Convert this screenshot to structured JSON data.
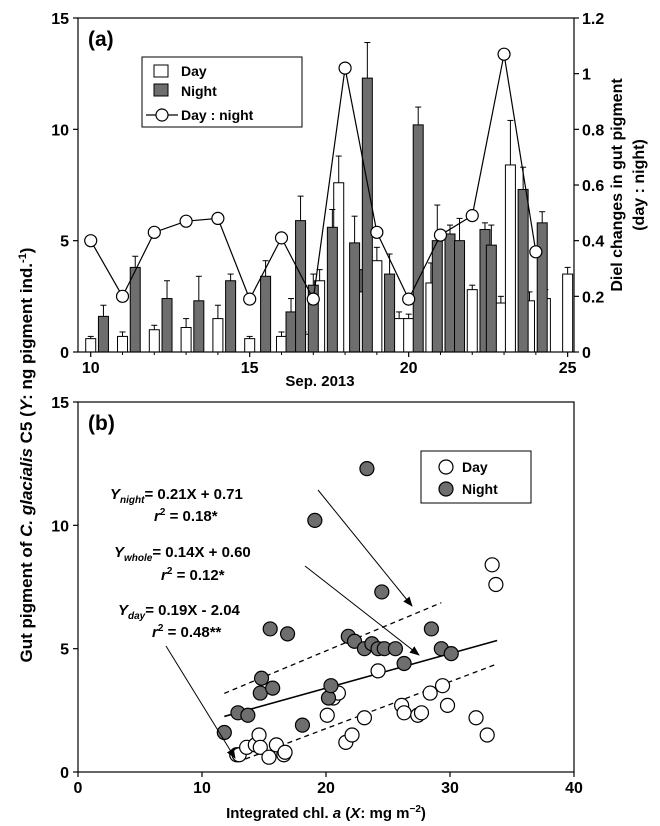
{
  "panel_a": {
    "label": "(a)",
    "left_axis_label_html": "",
    "right_axis_label_line1": "Diel changes in gut pigment",
    "right_axis_label_line2": "(day : night)",
    "x_title": "Sep. 2013",
    "legend": {
      "day": "Day",
      "night": "Night",
      "ratio": "Day : night"
    }
  },
  "panel_b": {
    "label": "(b)",
    "x_title_pre": "Integrated chl. ",
    "x_title_italic": "a",
    "x_title_mid": " (",
    "x_title_X": "X",
    "x_title_post": ": mg m",
    "x_title_sup": "−2",
    "x_title_end": ")",
    "legend": {
      "day": "Day",
      "night": "Night"
    },
    "eq_night": {
      "Y": "Y",
      "sub": "night",
      "rhs": "= 0.21X + 0.71",
      "r2_r": "r",
      "r2_sup": "2",
      "r2_val": " = 0.18*"
    },
    "eq_whole": {
      "Y": "Y",
      "sub": "whole",
      "rhs": "= 0.14X + 0.60",
      "r2_r": "r",
      "r2_sup": "2",
      "r2_val": " = 0.12*"
    },
    "eq_day": {
      "Y": "Y",
      "sub": "day",
      "rhs": "= 0.19X - 2.04",
      "r2_r": "r",
      "r2_sup": "2",
      "r2_val": " = 0.48**"
    }
  },
  "shared_ylabel": {
    "part1": "Gut pigment of ",
    "italic": "C. glacialis",
    "part2": " C5 (",
    "Y": "Y",
    "part3": ": ng pigment ind.",
    "sup": "-1",
    "part4": ")"
  },
  "colors": {
    "night_fill": "#6e6e6e",
    "day_fill": "#ffffff",
    "stroke": "#000000"
  },
  "chart_data": [
    {
      "type": "bar",
      "panel": "a",
      "xlim": [
        9.6,
        25.2
      ],
      "xticks": [
        10,
        15,
        20,
        25
      ],
      "ylim": [
        0,
        15
      ],
      "yticks": [
        0,
        5,
        10,
        15
      ],
      "ylim_right": [
        0,
        1.2
      ],
      "yticks_right": [
        "0",
        "0.2",
        "0.4",
        "0.6",
        "0.8",
        "1",
        "1.2"
      ],
      "series": [
        {
          "name": "Day",
          "x": [
            10.0,
            11.0,
            12.0,
            13.0,
            14.0,
            15.0,
            16.0,
            16.7,
            17.2,
            17.8,
            18.5,
            19.0,
            19.7,
            20.0,
            20.7,
            21.5,
            22.0,
            22.9,
            23.2,
            23.8,
            24.3,
            25.0
          ],
          "values": [
            0.6,
            0.7,
            1.0,
            1.1,
            1.5,
            0.6,
            0.7,
            0.8,
            3.2,
            7.6,
            2.7,
            4.1,
            1.5,
            1.5,
            3.1,
            2.3,
            2.8,
            2.2,
            8.4,
            2.3,
            2.4,
            3.5
          ],
          "errors": [
            0.1,
            0.2,
            0.2,
            0.4,
            0.6,
            0.1,
            0.2,
            0.1,
            0.5,
            1.2,
            1.0,
            0.6,
            0.3,
            0.2,
            0.9,
            0.3,
            0.2,
            0.3,
            2.0,
            0.4,
            0.4,
            0.3
          ]
        },
        {
          "name": "Night",
          "x": [
            10.4,
            11.4,
            12.4,
            13.4,
            14.4,
            15.5,
            16.3,
            16.6,
            17.0,
            17.6,
            18.3,
            18.7,
            19.4,
            20.3,
            20.9,
            21.3,
            21.6,
            22.4,
            22.6,
            23.6,
            24.2
          ],
          "values": [
            1.6,
            3.8,
            2.4,
            2.3,
            3.2,
            3.4,
            1.8,
            5.9,
            3.0,
            5.6,
            4.9,
            12.3,
            3.5,
            10.2,
            5.0,
            5.3,
            5.0,
            5.5,
            4.8,
            7.3,
            5.8
          ],
          "errors": [
            0.5,
            0.5,
            0.8,
            1.1,
            0.3,
            0.7,
            0.6,
            1.1,
            0.5,
            0.8,
            1.2,
            1.6,
            0.9,
            0.8,
            1.6,
            0.4,
            1.0,
            0.3,
            0.9,
            1.0,
            0.5
          ]
        }
      ],
      "line": {
        "name": "Day : night",
        "x": [
          10.0,
          11.0,
          12.0,
          13.0,
          14.0,
          15.0,
          16.0,
          17.0,
          18.0,
          19.0,
          20.0,
          21.0,
          22.0,
          23.0,
          24.0
        ],
        "values": [
          0.4,
          0.2,
          0.43,
          0.47,
          0.48,
          0.19,
          0.41,
          0.19,
          1.02,
          0.43,
          0.19,
          0.42,
          0.49,
          1.07,
          0.36
        ]
      }
    },
    {
      "type": "scatter",
      "panel": "b",
      "xlim": [
        0,
        40
      ],
      "xticks": [
        0,
        10,
        20,
        30,
        40
      ],
      "ylim": [
        0,
        15
      ],
      "yticks": [
        0,
        5,
        10,
        15
      ],
      "series": [
        {
          "name": "Day",
          "x": [
            12.8,
            13.0,
            13.6,
            14.3,
            14.6,
            14.7,
            15.4,
            16.0,
            16.6,
            16.7,
            20.1,
            20.6,
            21.0,
            21.6,
            22.1,
            23.1,
            24.2,
            26.1,
            26.3,
            27.4,
            27.7,
            28.4,
            29.4,
            29.8,
            32.1,
            33.0,
            33.4,
            33.7
          ],
          "y": [
            0.7,
            0.7,
            1.0,
            1.1,
            1.5,
            1.0,
            0.6,
            1.1,
            0.7,
            0.8,
            2.3,
            3.0,
            3.2,
            1.2,
            1.5,
            2.2,
            4.1,
            2.7,
            2.4,
            2.3,
            2.4,
            3.2,
            3.5,
            2.7,
            2.2,
            1.5,
            8.4,
            7.6
          ]
        },
        {
          "name": "Night",
          "x": [
            11.8,
            12.9,
            13.7,
            14.7,
            14.8,
            15.5,
            15.7,
            16.9,
            18.1,
            19.1,
            20.2,
            20.4,
            21.8,
            22.3,
            23.1,
            23.3,
            23.7,
            24.2,
            24.5,
            24.7,
            25.6,
            26.3,
            28.5,
            29.3,
            30.1
          ],
          "y": [
            1.6,
            2.4,
            2.3,
            3.2,
            3.8,
            5.8,
            3.4,
            5.6,
            1.9,
            10.2,
            3.0,
            3.5,
            5.5,
            5.3,
            5.0,
            12.3,
            5.2,
            5.0,
            7.3,
            5.0,
            5.0,
            4.4,
            5.8,
            5.0,
            4.8
          ]
        }
      ],
      "fits": [
        {
          "name": "whole",
          "style": "solid",
          "slope": 0.14,
          "intercept": 0.6,
          "x_range": [
            11.8,
            33.8
          ]
        },
        {
          "name": "night",
          "style": "dashed",
          "slope": 0.21,
          "intercept": 0.71,
          "x_range": [
            11.8,
            29.3
          ]
        },
        {
          "name": "day",
          "style": "dashed",
          "slope": 0.19,
          "intercept": -2.04,
          "x_range": [
            13.5,
            33.8
          ]
        }
      ]
    }
  ]
}
